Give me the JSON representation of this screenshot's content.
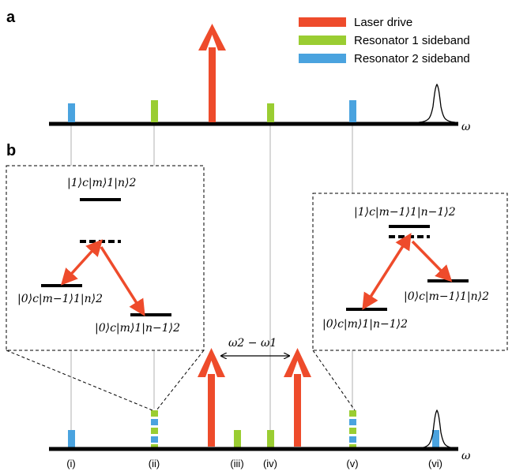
{
  "colors": {
    "laser": "#ee4b2b",
    "resonator1": "#9acd32",
    "resonator2": "#4aa3df",
    "axis": "#000000",
    "guide": "#b0b0b0"
  },
  "panels": {
    "a": "a",
    "b": "b"
  },
  "legend": [
    {
      "label": "Laser drive",
      "color": "#ee4b2b"
    },
    {
      "label": "Resonator 1 sideband",
      "color": "#9acd32"
    },
    {
      "label": "Resonator 2 sideband",
      "color": "#4aa3df"
    }
  ],
  "axis_label": "ω",
  "left_box": {
    "top_state": "|1⟩c|m⟩1|n⟩2",
    "left_state": "|0⟩c|m−1⟩1|n⟩2",
    "right_state": "|0⟩c|m⟩1|n−1⟩2"
  },
  "right_box": {
    "top_state": "|1⟩c|m−1⟩1|n−1⟩2",
    "left_state": "|0⟩c|m⟩1|n−1⟩2",
    "right_state": "|0⟩c|m−1⟩1|n⟩2"
  },
  "detuning_label": "ω2 − ω1",
  "roman_labels": [
    "(i)",
    "(ii)",
    "(iii)",
    "(iv)",
    "(v)",
    "(vi)"
  ]
}
